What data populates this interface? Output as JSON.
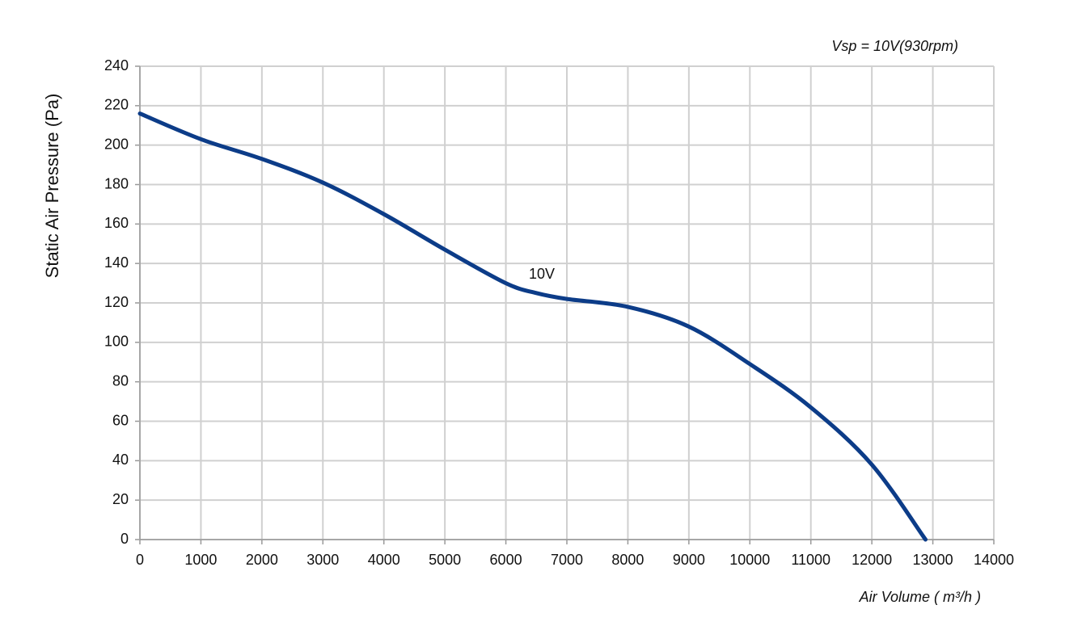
{
  "chart_data": {
    "type": "line",
    "annotation": "Vsp = 10V(930rpm)",
    "x_label": "Air Volume ( m³/h )",
    "y_label": "Static Air Pressure  (Pa)",
    "x": [
      0,
      1000,
      2000,
      3000,
      4000,
      5000,
      6000,
      6500,
      7000,
      8000,
      9000,
      10000,
      11000,
      12000,
      12880
    ],
    "series": [
      {
        "name": "10V",
        "color": "#0c3c88",
        "values": [
          216,
          203,
          193,
          181,
          165,
          147,
          130,
          125,
          122,
          118,
          108,
          89,
          67,
          38,
          0
        ]
      }
    ],
    "xlim": [
      0,
      14000
    ],
    "xticks": [
      0,
      1000,
      2000,
      3000,
      4000,
      5000,
      6000,
      7000,
      8000,
      9000,
      10000,
      11000,
      12000,
      13000,
      14000
    ],
    "ylim": [
      0,
      240
    ],
    "yticks": [
      0,
      20,
      40,
      60,
      80,
      100,
      120,
      140,
      160,
      180,
      200,
      220,
      240
    ],
    "grid": true
  }
}
